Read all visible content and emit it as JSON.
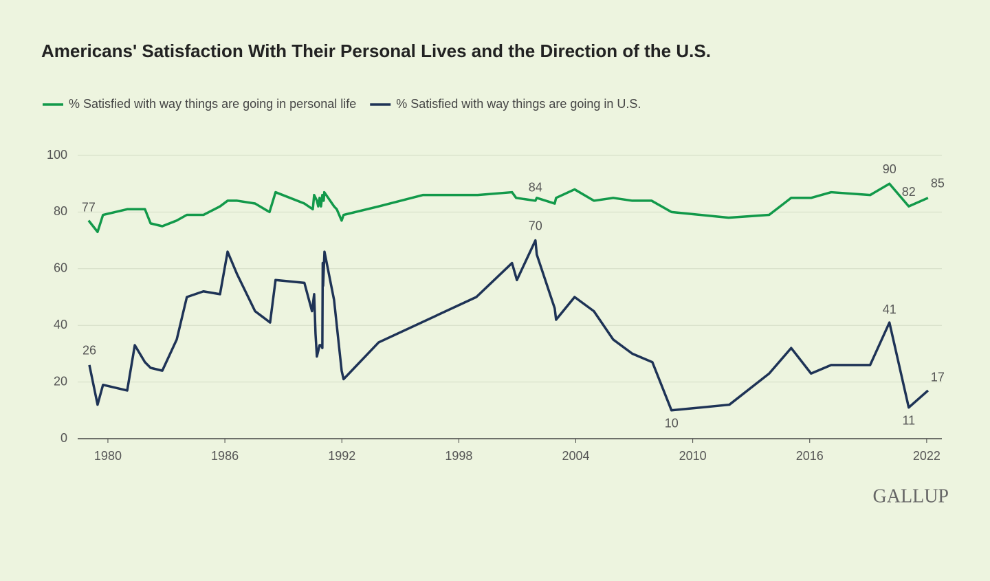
{
  "chart_data": {
    "type": "line",
    "title": "Americans' Satisfaction With Their Personal Lives and the Direction of the U.S.",
    "logo": "GALLUP",
    "xlim": [
      1978.45,
      2022.78
    ],
    "xticks": [
      1980,
      1986,
      1992,
      1998,
      2004,
      2010,
      2016,
      2022
    ],
    "ylim": [
      0,
      100
    ],
    "yticks": [
      0,
      20,
      40,
      60,
      80,
      100
    ],
    "grid": true,
    "series": [
      {
        "name": "% Satisfied with way things are going in personal life",
        "color": "#12994a",
        "x": [
          1979.01,
          1979.47,
          1979.75,
          1980.99,
          1981.9,
          1982.19,
          1982.79,
          1983.53,
          1984.05,
          1984.9,
          1985.75,
          1986.14,
          1986.63,
          1987.55,
          1988.29,
          1988.6,
          1990.08,
          1990.51,
          1990.58,
          1990.72,
          1990.79,
          1990.86,
          1990.93,
          1991.0,
          1991.07,
          1991.1,
          1991.6,
          1991.74,
          1991.99,
          1992.09,
          1993.89,
          1996.15,
          1998.97,
          2000.73,
          2000.94,
          2001.93,
          2002.0,
          2002.92,
          2002.99,
          2003.94,
          2004.93,
          2005.92,
          2006.9,
          2007.89,
          2008.91,
          2011.84,
          2013.92,
          2015.05,
          2016.07,
          2017.1,
          2019.1,
          2020.09,
          2021.08,
          2022.07
        ],
        "values": [
          77,
          73,
          79,
          81,
          81,
          76,
          75,
          77,
          79,
          79,
          82,
          84,
          84,
          83,
          80,
          87,
          83,
          81,
          86,
          84,
          82,
          85,
          82,
          86,
          84,
          87,
          82,
          81,
          77,
          79,
          82,
          86,
          86,
          87,
          85,
          84,
          85,
          83,
          85,
          88,
          84,
          85,
          84,
          84,
          80,
          78,
          79,
          85,
          85,
          87,
          86,
          90,
          82,
          85
        ]
      },
      {
        "name": "% Satisfied with way things are going in U.S.",
        "color": "#1e3356",
        "x": [
          1979.05,
          1979.47,
          1979.75,
          1980.99,
          1981.38,
          1981.9,
          1982.19,
          1982.79,
          1983.53,
          1984.05,
          1984.9,
          1985.75,
          1986.14,
          1986.63,
          1987.55,
          1988.32,
          1988.6,
          1990.08,
          1990.47,
          1990.58,
          1990.65,
          1990.72,
          1990.86,
          1990.93,
          1991.0,
          1991.02,
          1991.04,
          1991.11,
          1991.6,
          1991.99,
          1992.09,
          1993.89,
          1998.9,
          2000.73,
          2000.98,
          2001.93,
          2002.0,
          2002.92,
          2002.99,
          2003.94,
          2004.93,
          2005.92,
          2006.9,
          2007.93,
          2008.91,
          2011.88,
          2013.92,
          2015.05,
          2016.07,
          2017.1,
          2019.1,
          2020.09,
          2021.08,
          2022.07
        ],
        "values": [
          26,
          12,
          19,
          17,
          33,
          27,
          25,
          24,
          35,
          50,
          52,
          51,
          66,
          58,
          45,
          41,
          56,
          55,
          45,
          51,
          37,
          29,
          33,
          33,
          32,
          62,
          54,
          66,
          49,
          24,
          21,
          34,
          50,
          62,
          56,
          70,
          65,
          46,
          42,
          50,
          45,
          35,
          30,
          27,
          10,
          12,
          23,
          32,
          23,
          26,
          26,
          41,
          11,
          17
        ]
      }
    ]
  }
}
